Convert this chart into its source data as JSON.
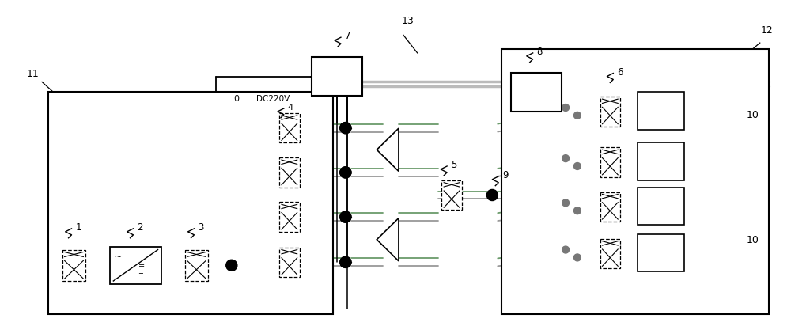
{
  "bg_color": "#ffffff",
  "lc": "#000000",
  "gray_bus": "#777777",
  "gray_wire": "#999999",
  "green_wire": "#6b9b6b",
  "fig_width": 10.0,
  "fig_height": 4.17
}
